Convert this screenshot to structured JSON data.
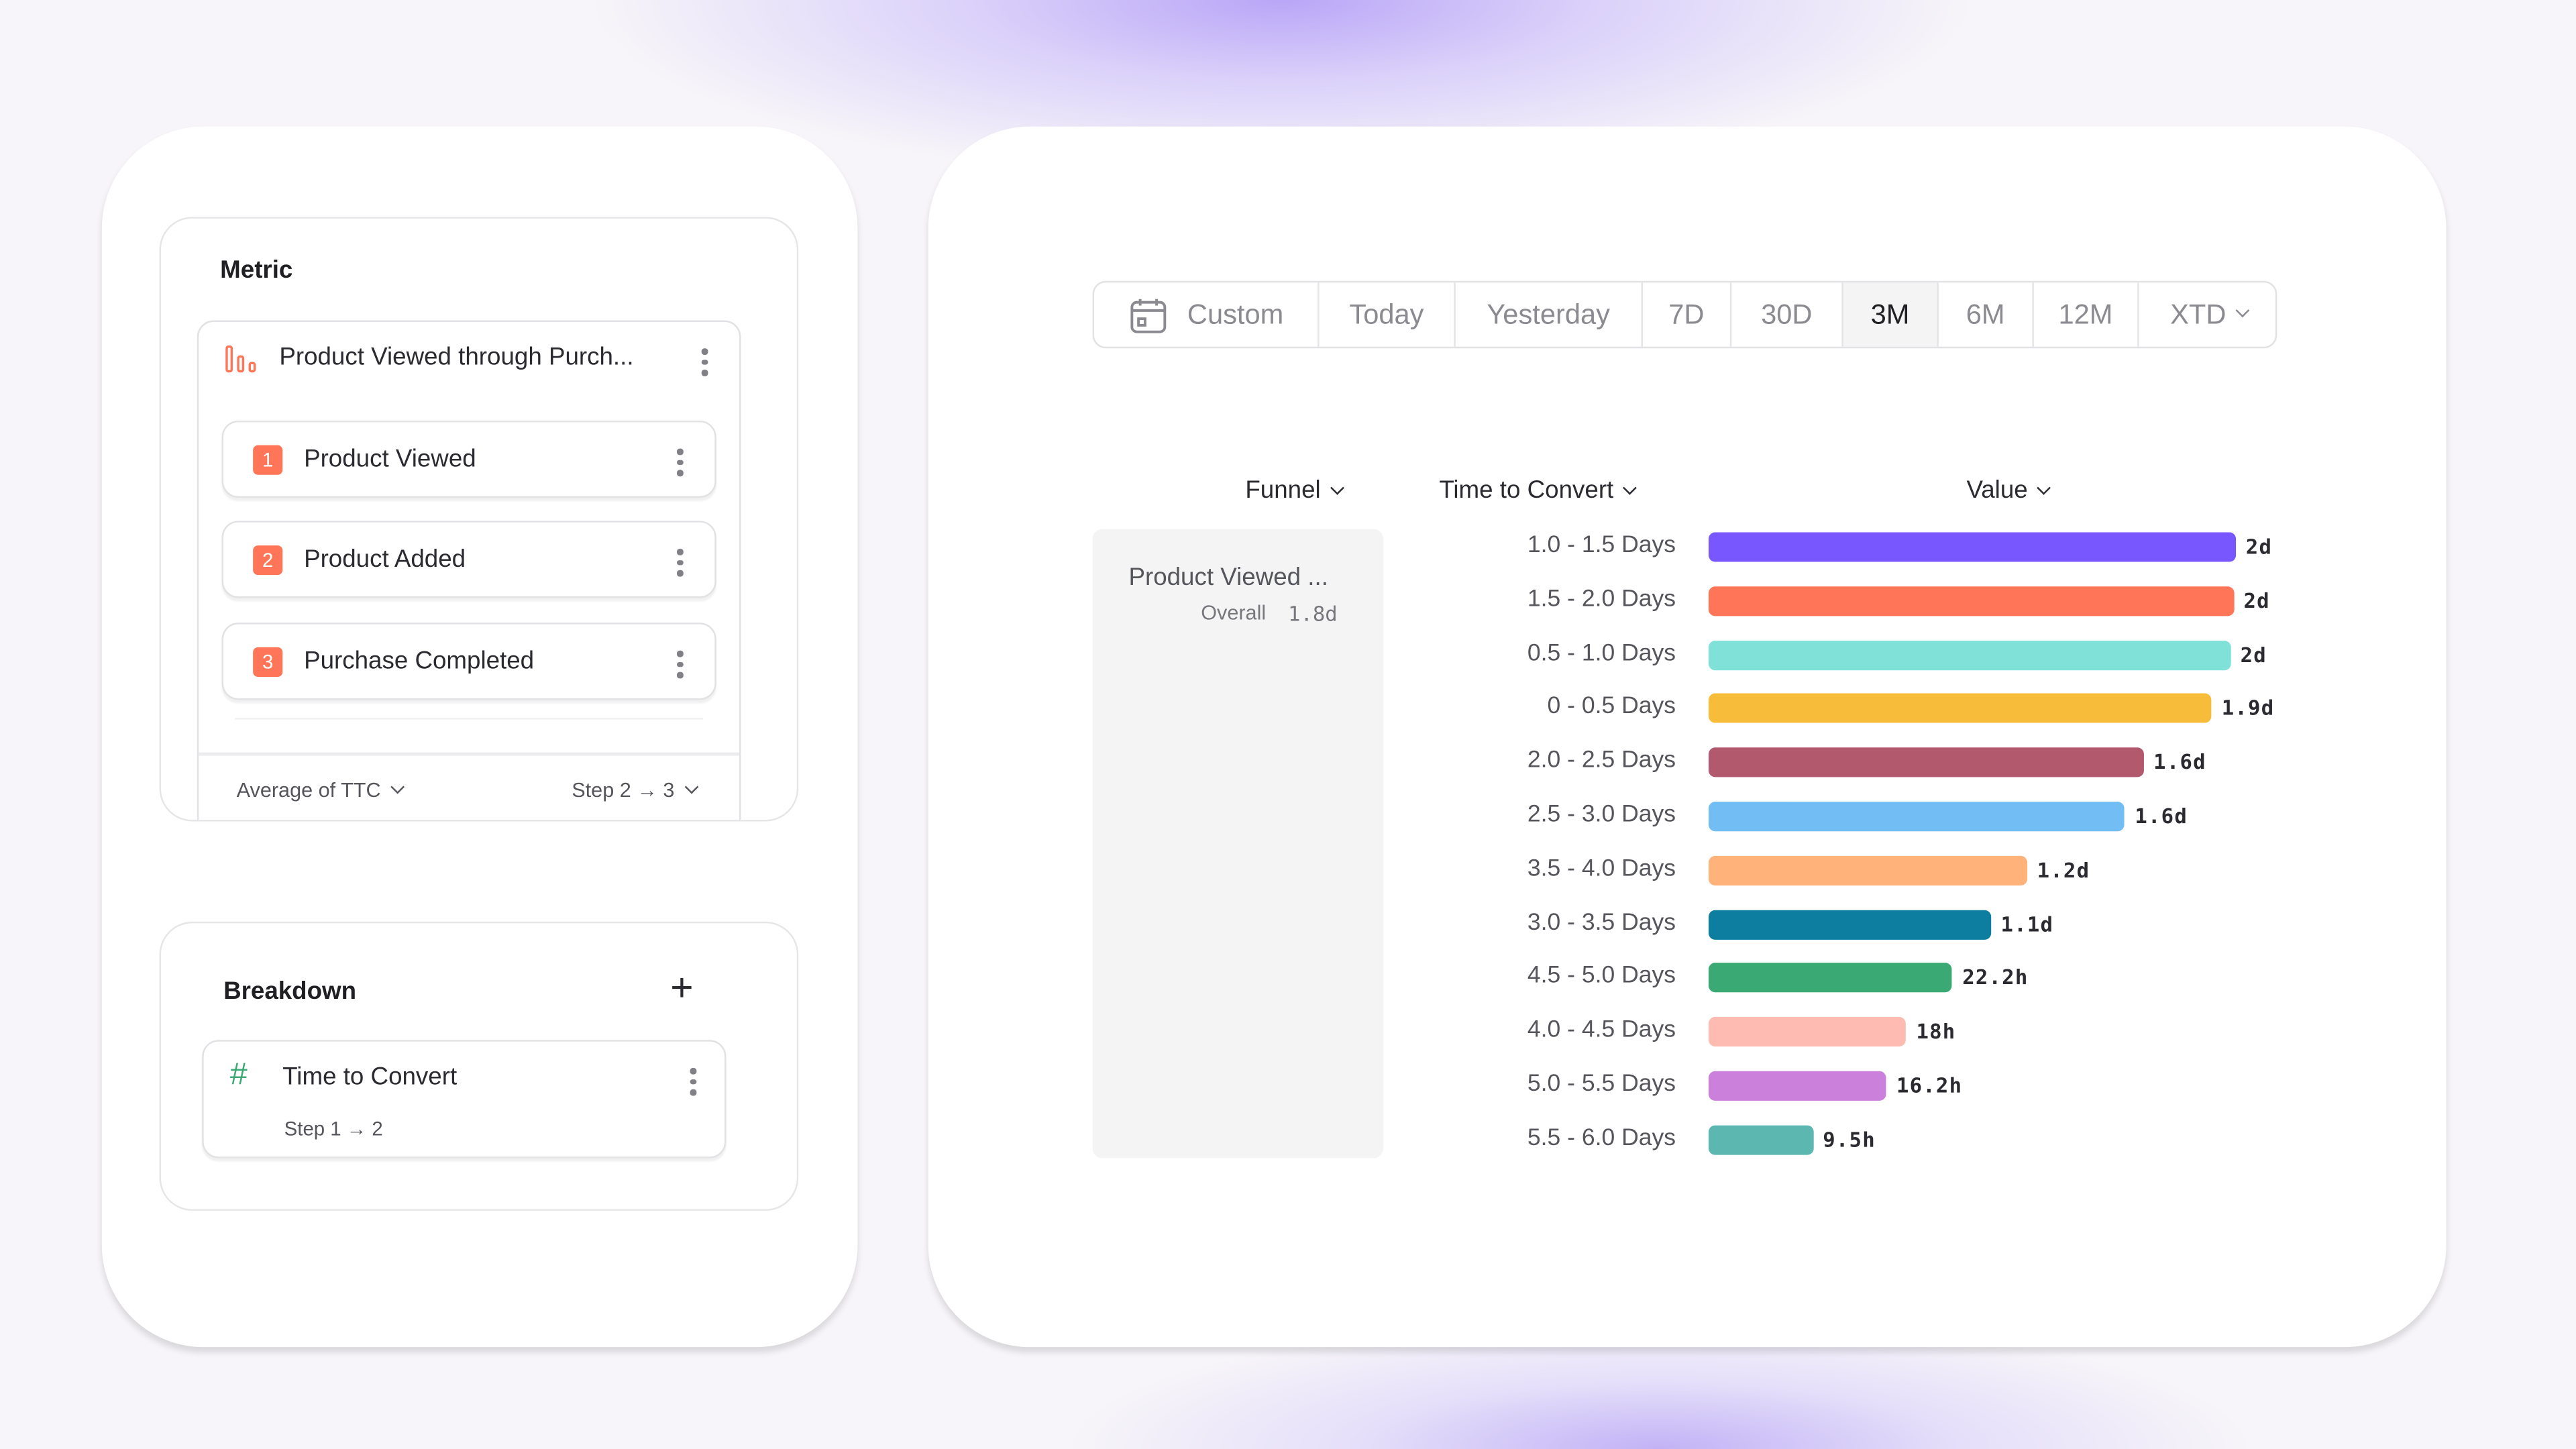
{
  "metric": {
    "title": "Metric",
    "funnel_name": "Product Viewed through Purch...",
    "steps": [
      {
        "num": "1",
        "label": "Product Viewed"
      },
      {
        "num": "2",
        "label": "Product Added"
      },
      {
        "num": "3",
        "label": "Purchase Completed"
      }
    ],
    "aggregation": "Average of TTC",
    "step_range": "Step 2 → 3"
  },
  "breakdown": {
    "title": "Breakdown",
    "item": {
      "label": "Time to Convert",
      "sub": "Step 1 → 2"
    }
  },
  "date_range": {
    "options": [
      "Custom",
      "Today",
      "Yesterday",
      "7D",
      "30D",
      "3M",
      "6M",
      "12M",
      "XTD"
    ],
    "selected": "3M"
  },
  "table": {
    "headers": {
      "funnel": "Funnel",
      "ttc": "Time to Convert",
      "value": "Value"
    },
    "funnel_cell": {
      "name": "Product Viewed ...",
      "overall_label": "Overall",
      "overall_value": "1.8d"
    }
  },
  "chart_data": {
    "type": "bar",
    "orientation": "horizontal",
    "unit": "hours",
    "xlim": [
      0,
      48
    ],
    "categories": [
      "1.0 - 1.5 Days",
      "1.5 - 2.0 Days",
      "0.5 - 1.0 Days",
      "0 - 0.5 Days",
      "2.0 - 2.5 Days",
      "2.5 - 3.0 Days",
      "3.5 - 4.0 Days",
      "3.0 - 3.5 Days",
      "4.5 - 5.0 Days",
      "4.0 - 4.5 Days",
      "5.0 - 5.5 Days",
      "5.5 - 6.0 Days"
    ],
    "values": [
      48,
      47.8,
      47.5,
      45.8,
      39.6,
      37.9,
      29,
      25.7,
      22.2,
      18,
      16.2,
      9.5
    ],
    "labels": [
      "2d",
      "2d",
      "2d",
      "1.9d",
      "1.6d",
      "1.6d",
      "1.2d",
      "1.1d",
      "22.2h",
      "18h",
      "16.2h",
      "9.5h"
    ],
    "colors": [
      "#7857ff",
      "#ff7557",
      "#80e1d9",
      "#f8bc3b",
      "#b2596e",
      "#72bef4",
      "#ffb27a",
      "#0d7ea0",
      "#3ba974",
      "#febbb2",
      "#cb80dc",
      "#5bb7af"
    ]
  },
  "colors": {
    "accent": "#ff7557",
    "hash_icon": "#3ba974"
  }
}
